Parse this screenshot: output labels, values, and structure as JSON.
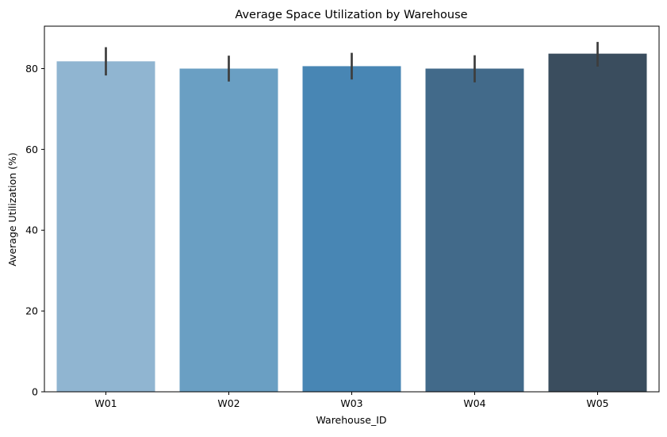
{
  "chart_data": {
    "type": "bar",
    "title": "Average Space Utilization by Warehouse",
    "xlabel": "Warehouse_ID",
    "ylabel": "Average Utilization (%)",
    "categories": [
      "W01",
      "W02",
      "W03",
      "W04",
      "W05"
    ],
    "values": [
      81.8,
      80.0,
      80.6,
      80.0,
      83.7
    ],
    "error_bars": [
      [
        78.3,
        85.3
      ],
      [
        76.8,
        83.2
      ],
      [
        77.3,
        83.9
      ],
      [
        76.6,
        83.3
      ],
      [
        80.5,
        86.6
      ]
    ],
    "ylim": [
      0,
      90.5
    ],
    "yticks": [
      0,
      20,
      40,
      60,
      80
    ],
    "grid": false,
    "colors": [
      "#90b5d1",
      "#6a9fc3",
      "#4886b4",
      "#426a8a",
      "#3a4d5e"
    ],
    "error_color": "#3d3d3d"
  }
}
